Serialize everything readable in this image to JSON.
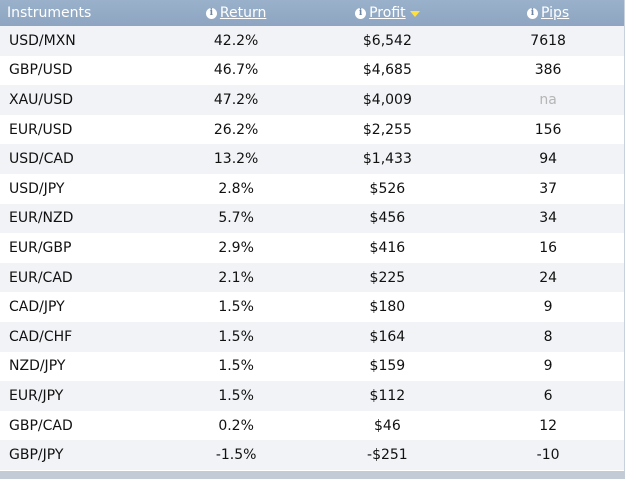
{
  "header": {
    "instruments": "Instruments",
    "return": "Return",
    "profit": "Profit",
    "pips": "Pips"
  },
  "colors": {
    "header_bg": "#94abc6",
    "header_text": "#ffffff",
    "row_alt": "#f1f3f6",
    "sort_arrow": "#ffe13a"
  },
  "sort": {
    "column": "Profit",
    "direction": "descending"
  },
  "rows": [
    {
      "instrument": "USD/MXN",
      "return": "42.2%",
      "profit": "$6,542",
      "pips": "7618"
    },
    {
      "instrument": "GBP/USD",
      "return": "46.7%",
      "profit": "$4,685",
      "pips": "386"
    },
    {
      "instrument": "XAU/USD",
      "return": "47.2%",
      "profit": "$4,009",
      "pips": "na"
    },
    {
      "instrument": "EUR/USD",
      "return": "26.2%",
      "profit": "$2,255",
      "pips": "156"
    },
    {
      "instrument": "USD/CAD",
      "return": "13.2%",
      "profit": "$1,433",
      "pips": "94"
    },
    {
      "instrument": "USD/JPY",
      "return": "2.8%",
      "profit": "$526",
      "pips": "37"
    },
    {
      "instrument": "EUR/NZD",
      "return": "5.7%",
      "profit": "$456",
      "pips": "34"
    },
    {
      "instrument": "EUR/GBP",
      "return": "2.9%",
      "profit": "$416",
      "pips": "16"
    },
    {
      "instrument": "EUR/CAD",
      "return": "2.1%",
      "profit": "$225",
      "pips": "24"
    },
    {
      "instrument": "CAD/JPY",
      "return": "1.5%",
      "profit": "$180",
      "pips": "9"
    },
    {
      "instrument": "CAD/CHF",
      "return": "1.5%",
      "profit": "$164",
      "pips": "8"
    },
    {
      "instrument": "NZD/JPY",
      "return": "1.5%",
      "profit": "$159",
      "pips": "9"
    },
    {
      "instrument": "EUR/JPY",
      "return": "1.5%",
      "profit": "$112",
      "pips": "6"
    },
    {
      "instrument": "GBP/CAD",
      "return": "0.2%",
      "profit": "$46",
      "pips": "12"
    },
    {
      "instrument": "GBP/JPY",
      "return": "-1.5%",
      "profit": "-$251",
      "pips": "-10"
    }
  ]
}
